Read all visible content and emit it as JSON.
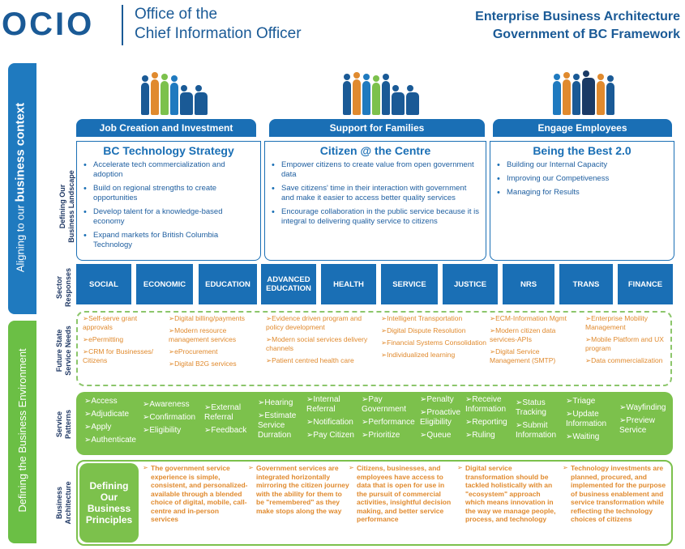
{
  "header": {
    "logo": "OCIO",
    "office_line1": "Office of the",
    "office_line2": "Chief Information Officer",
    "title_line1": "Enterprise Business Architecture",
    "title_line2": "Government of BC Framework"
  },
  "side": {
    "top_prefix": "Aligning to our ",
    "top_bold": "business context",
    "bottom": "Defining the Business Environment"
  },
  "row_labels": {
    "landscape": [
      "Defining Our",
      "Business Landscape"
    ],
    "sectors": [
      "Sector",
      "Responses"
    ],
    "needs": [
      "Future State",
      "Service Needs"
    ],
    "patterns": [
      "Service",
      "Patterns"
    ],
    "architecture": [
      "Business",
      "Architecture"
    ]
  },
  "themes": [
    {
      "header": "Job Creation and Investment",
      "title": "BC Technology Strategy",
      "bullets": [
        "Accelerate tech commercialization and adoption",
        "Build on regional strengths to create opportunities",
        "Develop talent for a knowledge-based economy",
        "Expand markets for British Columbia Technology"
      ]
    },
    {
      "header": "Support for Families",
      "title": "Citizen @ the Centre",
      "bullets": [
        "Empower citizens to create value from open government data",
        "Save citizens' time in their interaction with government and make it easier to access better quality services",
        "Encourage collaboration in the public service because it is integral to delivering quality service to citizens"
      ]
    },
    {
      "header": "Engage Employees",
      "title": "Being the Best 2.0",
      "bullets": [
        "Building our Internal Capacity",
        "Improving our Competiveness",
        "Managing for Results"
      ]
    }
  ],
  "sectors": [
    "SOCIAL",
    "ECONOMIC",
    "EDUCATION",
    "ADVANCED EDUCATION",
    "HEALTH",
    "SERVICE",
    "JUSTICE",
    "NRS",
    "TRANS",
    "FINANCE"
  ],
  "needs": [
    [
      "➢Self-serve grant approvals",
      "➢ePermitting",
      "➢CRM for Businesses/ Citizens"
    ],
    [
      "➢Digital billing/payments",
      "➢Modern resource management services",
      "➢eProcurement",
      "➢Digital B2G services"
    ],
    [
      "➢Evidence driven program and policy development",
      "➢Modern social services delivery channels",
      "➢Patient centred health care"
    ],
    [
      "➢Intelligent Transportation",
      "➢Digital Dispute Resolution",
      "➢Financial Systems Consolidation",
      "➢Individualized learning"
    ],
    [
      "➢ECM-Information Mgmt",
      "➢Modern citizen data services-APIs",
      "➢Digital Service Management (SMTP)"
    ],
    [
      "➢Enterprise Mobility Management",
      "➢Mobile Platform and UX program",
      "➢Data commercialization"
    ]
  ],
  "patterns": [
    [
      "➢Access",
      "➢Adjudicate",
      "➢Apply",
      "➢Authenticate"
    ],
    [
      "➢Awareness",
      "➢Confirmation",
      "➢Eligibility"
    ],
    [
      "➢External Referral",
      "➢Feedback"
    ],
    [
      "➢Hearing",
      "➢Estimate Service Durration"
    ],
    [
      "➢Internal Referral",
      "➢Notification",
      "➢Pay Citizen"
    ],
    [
      "➢Pay Government",
      "➢Performance",
      "➢Prioritize"
    ],
    [
      "➢Penalty",
      "➢Proactive Eligibility",
      "➢Queue"
    ],
    [
      "➢Receive Information",
      "➢Reporting",
      "➢Ruling"
    ],
    [
      "➢Status Tracking",
      "➢Submit Information"
    ],
    [
      "➢Triage",
      "➢Update Information",
      "➢Waiting"
    ],
    [
      "➢Wayfinding",
      "➢Preview Service"
    ]
  ],
  "architecture": {
    "pill": [
      "Defining",
      "Our",
      "Business",
      "Principles"
    ],
    "principles": [
      "The government service experience is simple, consistent, and personalized-available through a blended choice of digital, mobile, call-centre and in-person services",
      "Government services are integrated horizontally mirroring the citizen journey with the ability for them to be \"remembered\" as they make stops along the way",
      "Citizens, businesses, and employees have access to data that is open for use in the pursuit of commercial activities, insightful decision making, and better service performance",
      "Digital service transformation should be tackled holistically with an \"ecosystem\" approach which means innovation in the way we manage people, process, and technology",
      "Technology investments are planned, procured, and implemented for the purpose of business enablement and service transformation while reflecting the technology choices of citizens"
    ]
  },
  "colors": {
    "blue": "#1a6fb5",
    "dark_blue": "#1a5a96",
    "green": "#7cc14c",
    "orange": "#e08a2e"
  }
}
